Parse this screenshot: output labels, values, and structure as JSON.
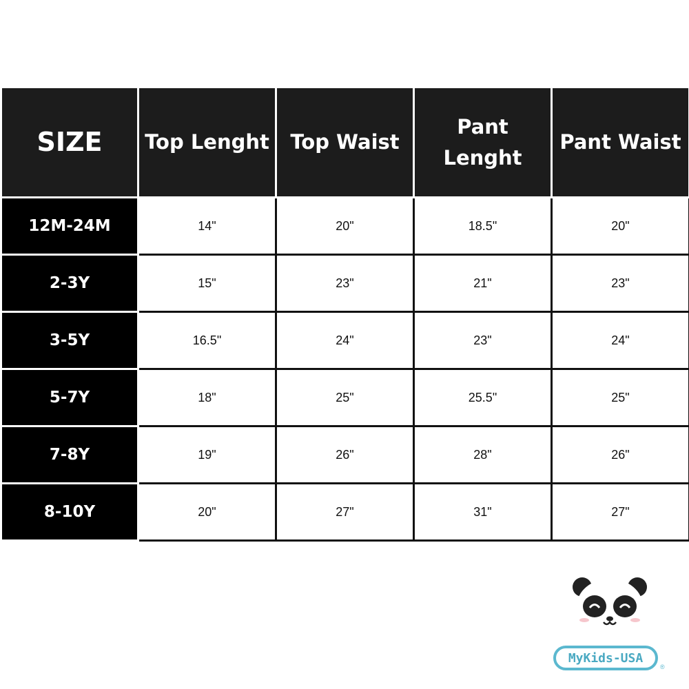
{
  "headers": [
    "SIZE",
    "Top Lenght",
    "Top Waist",
    "Pant Lenght",
    "Pant Waist"
  ],
  "rows": [
    {
      "size": "12M-24M",
      "values": [
        "14\"",
        "20\"",
        "18.5\"",
        "20\""
      ]
    },
    {
      "size": "2-3Y",
      "values": [
        "15\"",
        "23\"",
        "21\"",
        "23\""
      ]
    },
    {
      "size": "3-5Y",
      "values": [
        "16.5\"",
        "24\"",
        "23\"",
        "24\""
      ]
    },
    {
      "size": "5-7Y",
      "values": [
        "18\"",
        "25\"",
        "25.5\"",
        "25\""
      ]
    },
    {
      "size": "7-8Y",
      "values": [
        "19\"",
        "26\"",
        "28\"",
        "26\""
      ]
    },
    {
      "size": "8-10Y",
      "values": [
        "20\"",
        "27\"",
        "31\"",
        "27\""
      ]
    }
  ],
  "brand": {
    "name": "MyKids-USA",
    "registered": "®",
    "icon": "panda-icon",
    "color": "#5bb8cf"
  },
  "colors": {
    "header_bg": "#1c1c1c",
    "size_bg": "#000000"
  }
}
